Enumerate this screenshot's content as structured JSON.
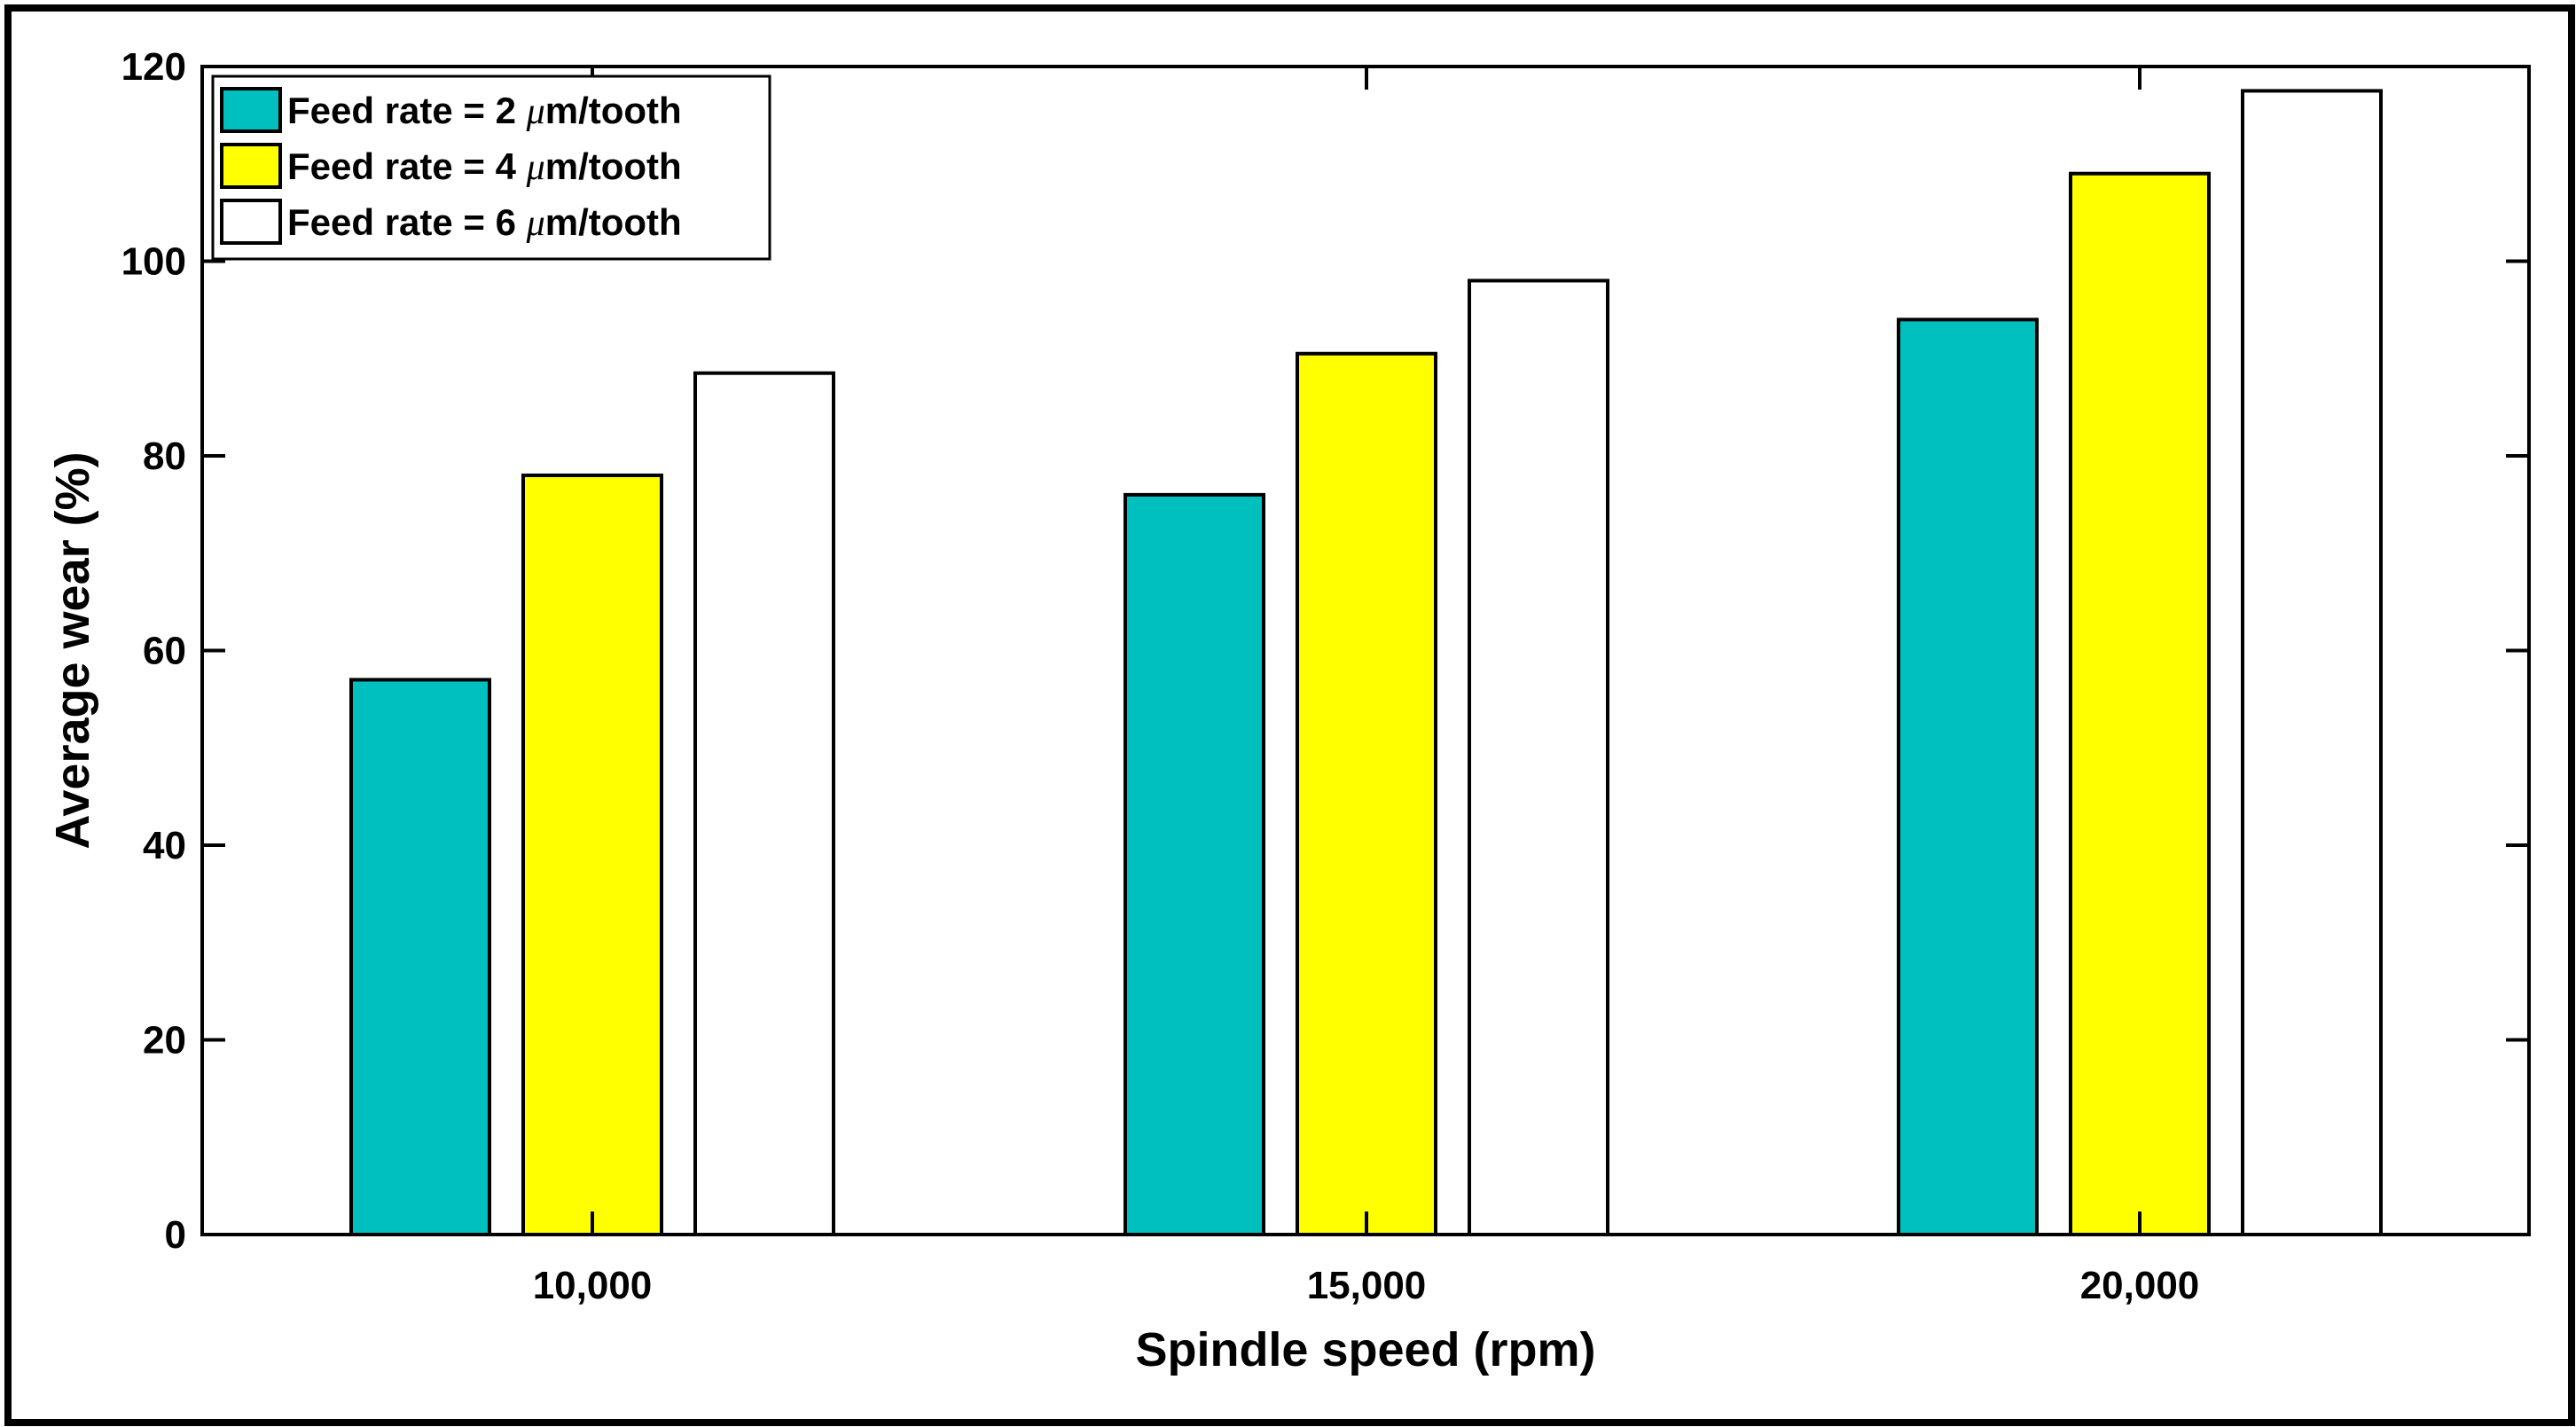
{
  "chart_data": {
    "type": "bar",
    "title": "",
    "xlabel": "Spindle speed (rpm)",
    "ylabel": "Average wear (%)",
    "categories": [
      "10,000",
      "15,000",
      "20,000"
    ],
    "ylim": [
      0,
      120
    ],
    "yticks": [
      0,
      20,
      40,
      60,
      80,
      100,
      120
    ],
    "grid": false,
    "legend_position": "top-left",
    "series": [
      {
        "name": "Feed rate = 2 μm/tooth",
        "label_prefix": "Feed rate = 2 ",
        "label_unit_symbol": "μ",
        "label_suffix": "m/tooth",
        "color": "#00BFBF",
        "values": [
          57,
          76,
          94
        ]
      },
      {
        "name": "Feed rate = 4 μm/tooth",
        "label_prefix": "Feed rate = 4 ",
        "label_unit_symbol": "μ",
        "label_suffix": "m/tooth",
        "color": "#FFFF00",
        "values": [
          78,
          90.5,
          109
        ]
      },
      {
        "name": "Feed rate = 6 μm/tooth",
        "label_prefix": "Feed rate = 6 ",
        "label_unit_symbol": "μ",
        "label_suffix": "m/tooth",
        "color": "#FFFFFF",
        "values": [
          88.5,
          98,
          117.5
        ]
      }
    ]
  }
}
